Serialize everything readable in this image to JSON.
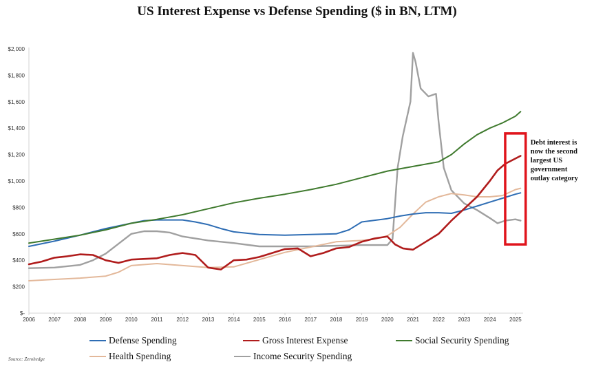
{
  "chart_data": {
    "type": "line",
    "title": "US Interest Expense vs Defense Spending ($ in BN, LTM)",
    "xlabel": "",
    "ylabel": "",
    "xlim": [
      2006,
      2025.3
    ],
    "ylim": [
      0,
      2000
    ],
    "y_ticks": [
      0,
      200,
      400,
      600,
      800,
      1000,
      1200,
      1400,
      1600,
      1800,
      2000
    ],
    "y_tick_labels": [
      "$-",
      "$200",
      "$400",
      "$600",
      "$800",
      "$1,000",
      "$1,200",
      "$1,400",
      "$1,600",
      "$1,800",
      "$2,000"
    ],
    "x_ticks": [
      2006,
      2007,
      2008,
      2009,
      2010,
      2011,
      2012,
      2013,
      2014,
      2015,
      2016,
      2017,
      2018,
      2019,
      2020,
      2021,
      2022,
      2023,
      2024,
      2025
    ],
    "x_tick_labels": [
      "2006",
      "2007",
      "2008",
      "2009",
      "2010",
      "2011",
      "2012",
      "2013",
      "2014",
      "2015",
      "2016",
      "2017",
      "2018",
      "2019",
      "2020",
      "2021",
      "2022",
      "2023",
      "2024",
      "2025"
    ],
    "grid": false,
    "legend_position": "bottom",
    "series": [
      {
        "name": "Defense Spending",
        "color": "#2e6db4",
        "x": [
          2006,
          2007,
          2008,
          2009,
          2010,
          2010.5,
          2011,
          2012,
          2012.5,
          2013,
          2013.5,
          2014,
          2015,
          2016,
          2017,
          2018,
          2018.5,
          2019,
          2020,
          2020.5,
          2021,
          2021.5,
          2022,
          2022.5,
          2023,
          2023.5,
          2024,
          2024.5,
          2025,
          2025.2
        ],
        "y": [
          505,
          545,
          590,
          640,
          680,
          700,
          705,
          705,
          690,
          670,
          640,
          615,
          595,
          590,
          595,
          600,
          630,
          690,
          715,
          735,
          750,
          760,
          760,
          755,
          780,
          810,
          840,
          870,
          900,
          910
        ]
      },
      {
        "name": "Gross Interest Expense",
        "color": "#b01c1c",
        "x": [
          2006,
          2006.5,
          2007,
          2007.5,
          2008,
          2008.5,
          2009,
          2009.5,
          2010,
          2011,
          2011.5,
          2012,
          2012.5,
          2013,
          2013.5,
          2014,
          2014.5,
          2015,
          2015.5,
          2016,
          2016.5,
          2017,
          2017.5,
          2018,
          2018.5,
          2019,
          2019.5,
          2020,
          2020.3,
          2020.6,
          2021,
          2021.5,
          2022,
          2022.5,
          2023,
          2023.5,
          2024,
          2024.3,
          2024.6,
          2025,
          2025.2
        ],
        "y": [
          370,
          390,
          420,
          430,
          445,
          440,
          400,
          380,
          405,
          415,
          440,
          455,
          440,
          345,
          330,
          400,
          405,
          425,
          455,
          485,
          490,
          430,
          455,
          490,
          500,
          540,
          565,
          580,
          520,
          490,
          480,
          540,
          600,
          700,
          790,
          880,
          1000,
          1080,
          1130,
          1170,
          1190
        ]
      },
      {
        "name": "Social Security Spending",
        "color": "#3f7a2e",
        "x": [
          2006,
          2007,
          2008,
          2009,
          2010,
          2011,
          2012,
          2013,
          2014,
          2015,
          2016,
          2017,
          2018,
          2019,
          2020,
          2021,
          2022,
          2022.5,
          2023,
          2023.5,
          2024,
          2024.5,
          2025,
          2025.2
        ],
        "y": [
          530,
          560,
          590,
          630,
          680,
          710,
          745,
          790,
          835,
          870,
          900,
          935,
          975,
          1025,
          1075,
          1110,
          1145,
          1200,
          1280,
          1350,
          1400,
          1440,
          1490,
          1525
        ]
      },
      {
        "name": "Health Spending",
        "color": "#e3b89a",
        "x": [
          2006,
          2007,
          2008,
          2009,
          2009.5,
          2010,
          2011,
          2012,
          2013,
          2014,
          2015,
          2016,
          2017,
          2018,
          2019,
          2019.5,
          2020,
          2020.5,
          2021,
          2021.5,
          2022,
          2022.5,
          2023,
          2023.5,
          2024,
          2024.5,
          2025,
          2025.2
        ],
        "y": [
          245,
          255,
          265,
          280,
          310,
          360,
          375,
          360,
          345,
          350,
          405,
          460,
          500,
          540,
          550,
          560,
          585,
          650,
          750,
          840,
          880,
          905,
          895,
          880,
          880,
          890,
          935,
          945
        ]
      },
      {
        "name": "Income Security Spending",
        "color": "#a0a0a0",
        "x": [
          2006,
          2007,
          2008,
          2008.5,
          2009,
          2010,
          2010.5,
          2011,
          2011.5,
          2012,
          2013,
          2014,
          2015,
          2016,
          2017,
          2018,
          2019,
          2020,
          2020.2,
          2020.4,
          2020.6,
          2020.9,
          2021,
          2021.1,
          2021.3,
          2021.6,
          2021.9,
          2022,
          2022.2,
          2022.5,
          2023,
          2023.5,
          2024,
          2024.3,
          2024.6,
          2025,
          2025.2
        ],
        "y": [
          340,
          345,
          365,
          400,
          450,
          600,
          620,
          620,
          610,
          580,
          550,
          530,
          505,
          505,
          505,
          510,
          515,
          515,
          560,
          1100,
          1340,
          1600,
          1970,
          1900,
          1700,
          1640,
          1660,
          1450,
          1100,
          930,
          830,
          780,
          720,
          680,
          700,
          710,
          700
        ]
      }
    ],
    "annotations": [
      {
        "text_lines": [
          "Debt interest is",
          "now the second",
          "largest US",
          "government",
          "outlay category"
        ],
        "highlight_box_x": [
          2024.6,
          2025.4
        ],
        "highlight_box_y": [
          520,
          1360
        ],
        "box_color": "#e0141c"
      }
    ],
    "source": "Source: Zerohedge"
  }
}
